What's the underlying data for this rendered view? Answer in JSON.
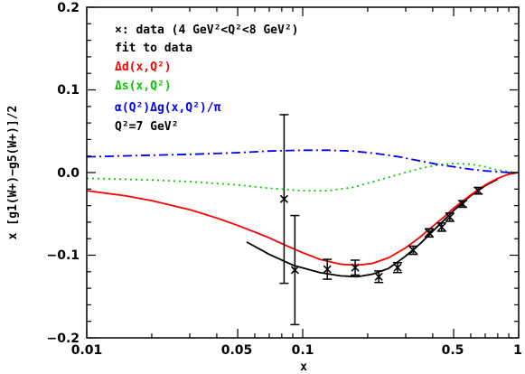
{
  "chart_data": {
    "type": "line",
    "title": "",
    "xlabel": "x",
    "ylabel": "x [g1(W+)−g5(W+)]/2",
    "xscale": "log",
    "xlim": [
      0.01,
      1
    ],
    "ylim": [
      -0.2,
      0.2
    ],
    "grid": false,
    "legend_position": "top-left",
    "x_tick_labels": [
      "0.01",
      "0.05",
      "0.1",
      "0.5",
      "1"
    ],
    "y_tick_labels": [
      "0.2",
      "0.1",
      "0.0",
      "−0.1",
      "−0.2"
    ],
    "legend": {
      "data": "×: data (4 GeV²<Q²<8 GeV²)",
      "fit": "fit to data",
      "delta_d": "Δd(x,Q²)",
      "delta_s": "Δs(x,Q²)",
      "delta_g": "α(Q²)Δg(x,Q²)/π",
      "q2": "Q²=7 GeV²"
    },
    "colors": {
      "fit": "#000000",
      "delta_d": "#ff0000",
      "delta_s": "#00cc00",
      "delta_g": "#0000ff",
      "data": "#000000"
    },
    "data_points": [
      {
        "x": 0.082,
        "y": -0.032,
        "err": 0.102
      },
      {
        "x": 0.092,
        "y": -0.118,
        "err": 0.066
      },
      {
        "x": 0.13,
        "y": -0.117,
        "err": 0.012
      },
      {
        "x": 0.175,
        "y": -0.115,
        "err": 0.009
      },
      {
        "x": 0.225,
        "y": -0.126,
        "err": 0.007
      },
      {
        "x": 0.275,
        "y": -0.115,
        "err": 0.006
      },
      {
        "x": 0.325,
        "y": -0.094,
        "err": 0.005
      },
      {
        "x": 0.385,
        "y": -0.073,
        "err": 0.005
      },
      {
        "x": 0.44,
        "y": -0.066,
        "err": 0.005
      },
      {
        "x": 0.48,
        "y": -0.054,
        "err": 0.005
      },
      {
        "x": 0.55,
        "y": -0.038,
        "err": 0.004
      },
      {
        "x": 0.65,
        "y": -0.022,
        "err": 0.004
      }
    ],
    "series": [
      {
        "name": "fit to data",
        "style": "solid",
        "x": [
          0.055,
          0.07,
          0.09,
          0.12,
          0.15,
          0.18,
          0.21,
          0.25,
          0.3,
          0.35,
          0.4,
          0.45,
          0.5,
          0.6,
          0.7,
          0.8
        ],
        "y": [
          -0.084,
          -0.099,
          -0.112,
          -0.121,
          -0.125,
          -0.126,
          -0.123,
          -0.116,
          -0.101,
          -0.086,
          -0.071,
          -0.058,
          -0.046,
          -0.028,
          -0.016,
          -0.008
        ]
      },
      {
        "name": "Δd(x,Q²)",
        "style": "solid",
        "x": [
          0.01,
          0.015,
          0.02,
          0.03,
          0.04,
          0.05,
          0.06,
          0.07,
          0.08,
          0.1,
          0.12,
          0.15,
          0.18,
          0.21,
          0.25,
          0.3,
          0.35,
          0.4,
          0.45,
          0.5,
          0.6,
          0.7,
          0.8,
          0.9,
          1.0
        ],
        "y": [
          -0.022,
          -0.028,
          -0.034,
          -0.045,
          -0.055,
          -0.064,
          -0.072,
          -0.079,
          -0.086,
          -0.097,
          -0.105,
          -0.111,
          -0.112,
          -0.11,
          -0.103,
          -0.091,
          -0.078,
          -0.065,
          -0.054,
          -0.043,
          -0.027,
          -0.015,
          -0.007,
          -0.002,
          0.0
        ]
      },
      {
        "name": "Δs(x,Q²)",
        "style": "dotted",
        "x": [
          0.01,
          0.02,
          0.03,
          0.05,
          0.07,
          0.1,
          0.13,
          0.17,
          0.22,
          0.28,
          0.35,
          0.42,
          0.5,
          0.6,
          0.7,
          0.8,
          0.9,
          1.0
        ],
        "y": [
          -0.007,
          -0.009,
          -0.011,
          -0.015,
          -0.019,
          -0.022,
          -0.022,
          -0.018,
          -0.01,
          -0.002,
          0.005,
          0.009,
          0.011,
          0.01,
          0.007,
          0.003,
          0.001,
          0.0
        ]
      },
      {
        "name": "α(Q²)Δg(x,Q²)/π",
        "style": "dashdot",
        "x": [
          0.01,
          0.02,
          0.03,
          0.05,
          0.07,
          0.1,
          0.13,
          0.17,
          0.22,
          0.28,
          0.35,
          0.42,
          0.5,
          0.6,
          0.7,
          0.8,
          0.9,
          1.0
        ],
        "y": [
          0.019,
          0.021,
          0.022,
          0.024,
          0.026,
          0.027,
          0.027,
          0.026,
          0.023,
          0.019,
          0.014,
          0.01,
          0.007,
          0.004,
          0.002,
          0.001,
          0.0,
          0.0
        ]
      }
    ]
  }
}
